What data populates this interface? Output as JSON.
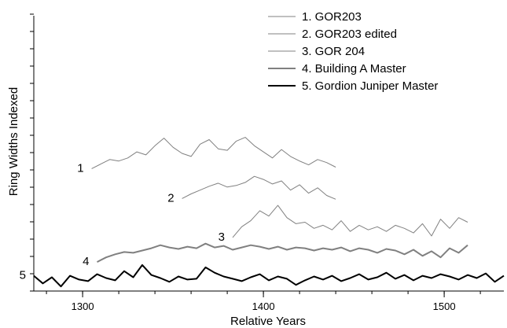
{
  "chart_data": {
    "type": "line",
    "xlabel": "Relative Years",
    "ylabel": "Ring Widths Indexed",
    "xlim": [
      1273,
      1533
    ],
    "x_ticks": [
      1300,
      1400,
      1500
    ],
    "grid": false,
    "legend_position": "top-right",
    "series": [
      {
        "name": "1. GOR203",
        "label": "1",
        "color": "#808080",
        "width": 1,
        "x": [
          1305,
          1310,
          1315,
          1320,
          1325,
          1330,
          1335,
          1340,
          1345,
          1350,
          1355,
          1360,
          1365,
          1370,
          1375,
          1380,
          1385,
          1390,
          1395,
          1400,
          1405,
          1410,
          1415,
          1420,
          1425,
          1430,
          1435,
          1440
        ],
        "y": [
          160,
          166,
          172,
          170,
          174,
          182,
          178,
          190,
          200,
          188,
          180,
          176,
          192,
          198,
          186,
          184,
          196,
          201,
          190,
          182,
          174,
          185,
          176,
          170,
          165,
          172,
          168,
          162
        ]
      },
      {
        "name": "2. GOR203 edited",
        "label": "2",
        "color": "#808080",
        "width": 1,
        "x": [
          1355,
          1360,
          1365,
          1370,
          1375,
          1380,
          1385,
          1390,
          1395,
          1400,
          1405,
          1410,
          1415,
          1420,
          1425,
          1430,
          1435,
          1440
        ],
        "y": [
          121,
          127,
          132,
          137,
          141,
          136,
          138,
          142,
          150,
          146,
          140,
          144,
          132,
          139,
          128,
          135,
          125,
          120
        ]
      },
      {
        "name": "3. GOR 204",
        "label": "3",
        "color": "#808080",
        "width": 1,
        "x": [
          1383,
          1388,
          1393,
          1398,
          1403,
          1408,
          1413,
          1418,
          1423,
          1428,
          1433,
          1438,
          1443,
          1448,
          1453,
          1458,
          1463,
          1468,
          1473,
          1478,
          1483,
          1488,
          1493,
          1498,
          1503,
          1508,
          1513
        ],
        "y": [
          70,
          84,
          92,
          105,
          98,
          112,
          96,
          88,
          90,
          82,
          86,
          80,
          92,
          78,
          86,
          80,
          84,
          78,
          86,
          82,
          76,
          88,
          72,
          94,
          82,
          96,
          90
        ]
      },
      {
        "name": "4. Building A Master",
        "label": "4",
        "color": "#808080",
        "width": 2,
        "x": [
          1308,
          1313,
          1318,
          1323,
          1328,
          1333,
          1338,
          1343,
          1348,
          1353,
          1358,
          1363,
          1368,
          1373,
          1378,
          1383,
          1388,
          1393,
          1398,
          1403,
          1408,
          1413,
          1418,
          1423,
          1428,
          1433,
          1438,
          1443,
          1448,
          1453,
          1458,
          1463,
          1468,
          1473,
          1478,
          1483,
          1488,
          1493,
          1498,
          1503,
          1508,
          1513
        ],
        "y": [
          38,
          44,
          48,
          51,
          50,
          53,
          56,
          60,
          57,
          55,
          58,
          56,
          62,
          57,
          59,
          54,
          57,
          60,
          58,
          55,
          58,
          54,
          57,
          56,
          53,
          56,
          54,
          57,
          52,
          56,
          54,
          50,
          55,
          53,
          48,
          54,
          46,
          52,
          44,
          56,
          50,
          60
        ]
      },
      {
        "name": "5. Gordion Juniper Master",
        "label": "5",
        "color": "#000000",
        "width": 2,
        "x": [
          1273,
          1278,
          1283,
          1288,
          1293,
          1298,
          1303,
          1308,
          1313,
          1318,
          1323,
          1328,
          1333,
          1338,
          1343,
          1348,
          1353,
          1358,
          1363,
          1368,
          1373,
          1378,
          1383,
          1388,
          1393,
          1398,
          1403,
          1408,
          1413,
          1418,
          1423,
          1428,
          1433,
          1438,
          1443,
          1448,
          1453,
          1458,
          1463,
          1468,
          1473,
          1478,
          1483,
          1488,
          1493,
          1498,
          1503,
          1508,
          1513,
          1518,
          1523,
          1528,
          1533
        ],
        "y": [
          20,
          10,
          18,
          6,
          20,
          15,
          13,
          22,
          17,
          14,
          26,
          18,
          34,
          21,
          17,
          12,
          19,
          15,
          16,
          31,
          24,
          19,
          16,
          13,
          18,
          22,
          14,
          19,
          16,
          8,
          14,
          19,
          15,
          20,
          13,
          17,
          22,
          15,
          18,
          24,
          16,
          21,
          14,
          20,
          17,
          22,
          19,
          15,
          21,
          17,
          23,
          12,
          20
        ]
      }
    ]
  }
}
